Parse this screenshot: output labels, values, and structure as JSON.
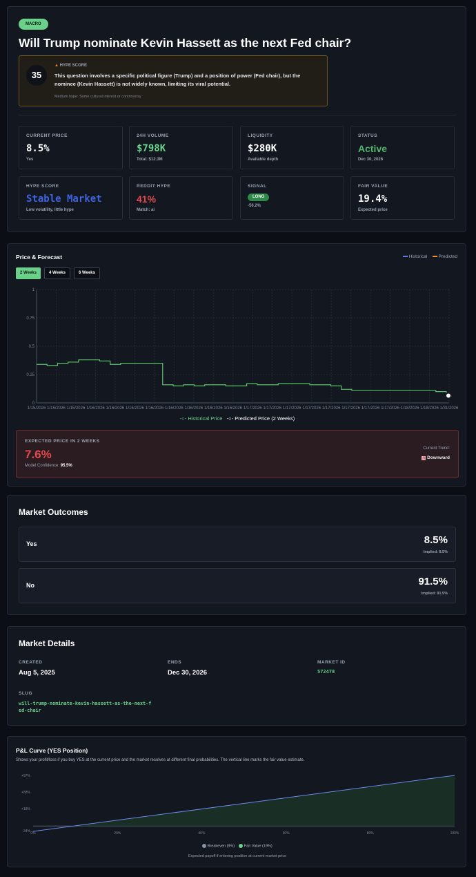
{
  "header": {
    "category_badge": "MACRO",
    "title": "Will Trump nominate Kevin Hassett as the next Fed chair?",
    "hype": {
      "score": "35",
      "label": "HYPE SCORE",
      "text": "This question involves a specific political figure (Trump) and a position of power (Fed chair), but the nominee (Kevin Hassett) is not widely known, limiting its viral potential.",
      "note": "Medium hype: Some cultural interest or controversy"
    }
  },
  "stats": {
    "current_price": {
      "label": "CURRENT PRICE",
      "value": "8.5%",
      "sub": "Yes"
    },
    "volume": {
      "label": "24H VOLUME",
      "value": "$798K",
      "sub": "Total: $12.3M"
    },
    "liquidity": {
      "label": "LIQUIDITY",
      "value": "$280K",
      "sub": "Available depth"
    },
    "status": {
      "label": "STATUS",
      "value": "Active",
      "sub": "Dec 30, 2026"
    },
    "hype_score": {
      "label": "HYPE SCORE",
      "value": "Stable Market",
      "sub": "Low volatility, little hype"
    },
    "reddit": {
      "label": "REDDIT HYPE",
      "value": "41%",
      "sub": "Match: ai"
    },
    "signal": {
      "label": "SIGNAL",
      "value": "LONG",
      "sub": "-56.2%"
    },
    "fair_value": {
      "label": "FAIR VALUE",
      "value": "19.4%",
      "sub": "Expected price"
    }
  },
  "forecast": {
    "title": "Price & Forecast",
    "legend_historical": "Historical",
    "legend_predicted": "Predicted",
    "tabs": [
      "2 Weeks",
      "4 Weeks",
      "6 Weeks"
    ],
    "bottom_legend_historical": "Historical Price",
    "bottom_legend_predicted": "Predicted Price (2 Weeks)",
    "expected_label": "EXPECTED PRICE IN 2 WEEKS",
    "expected_value": "7.6%",
    "confidence_label": "Model Confidence:",
    "confidence_value": "95.5%",
    "trend_label": "Current Trend:",
    "trend_value": "Downward"
  },
  "chart_data": [
    {
      "type": "line",
      "title": "Price & Forecast",
      "ylim": [
        0,
        1
      ],
      "yticks": [
        "0",
        "0.25",
        "0.5",
        "0.75",
        "1"
      ],
      "xticks": [
        "1/15/2026",
        "1/15/2026",
        "1/15/2026",
        "1/16/2026",
        "1/16/2026",
        "1/16/2026",
        "1/16/2026",
        "1/16/2026",
        "1/16/2026",
        "1/16/2026",
        "1/16/2026",
        "1/17/2026",
        "1/17/2026",
        "1/17/2026",
        "1/17/2026",
        "1/17/2026",
        "1/17/2026",
        "1/17/2026",
        "1/17/2026",
        "1/18/2026",
        "1/18/2026",
        "1/31/2026"
      ],
      "series": [
        {
          "name": "Historical Price",
          "color": "#5ec26a",
          "values": [
            0.34,
            0.33,
            0.35,
            0.36,
            0.38,
            0.38,
            0.37,
            0.34,
            0.35,
            0.35,
            0.35,
            0.35,
            0.16,
            0.15,
            0.16,
            0.15,
            0.16,
            0.16,
            0.15,
            0.15,
            0.17,
            0.16,
            0.16,
            0.17,
            0.17,
            0.17,
            0.16,
            0.16,
            0.15,
            0.12,
            0.11,
            0.11,
            0.11,
            0.11,
            0.11,
            0.11,
            0.11,
            0.11,
            0.1,
            0.09
          ]
        },
        {
          "name": "Predicted Price (2 Weeks)",
          "color": "#ffffff",
          "values": [
            0.076
          ]
        }
      ]
    },
    {
      "type": "line",
      "title": "P&L Curve (YES Position)",
      "x": [
        0,
        100
      ],
      "xticks": [
        "0%",
        "20%",
        "40%",
        "60%",
        "80%",
        "100%"
      ],
      "yticks": [
        "+97%",
        "+58%",
        "+18%",
        "-34%"
      ],
      "series": [
        {
          "name": "P&L",
          "values": [
            -34,
            97
          ]
        }
      ],
      "breakeven": 9,
      "fair_value": 19
    }
  ],
  "outcomes": {
    "title": "Market Outcomes",
    "items": [
      {
        "name": "Yes",
        "value": "8.5%",
        "implied": "Implied: 8.5%"
      },
      {
        "name": "No",
        "value": "91.5%",
        "implied": "Implied: 91.5%"
      }
    ]
  },
  "details": {
    "title": "Market Details",
    "created_label": "CREATED",
    "created": "Aug 5, 2025",
    "ends_label": "ENDS",
    "ends": "Dec 30, 2026",
    "id_label": "MARKET ID",
    "id": "572478",
    "slug_label": "SLUG",
    "slug_line1": "will-trump-nominate-kevin-hassett-as-the-next-f",
    "slug_line2": "ed-chair"
  },
  "pnl": {
    "title": "P&L Curve (YES Position)",
    "desc": "Shows your profit/loss if you buy YES at the current price and the market resolves at different final probabilities. The vertical line marks the fair value estimate.",
    "legend_breakeven": "Breakeven (9%)",
    "legend_fair": "Fair Value (19%)",
    "footer": "Expected payoff if entering position at current market price"
  },
  "colors": {
    "accent_green": "#6bd18a",
    "red": "#e5484d",
    "blue": "#3f63e0",
    "bg": "#0b0e14"
  }
}
